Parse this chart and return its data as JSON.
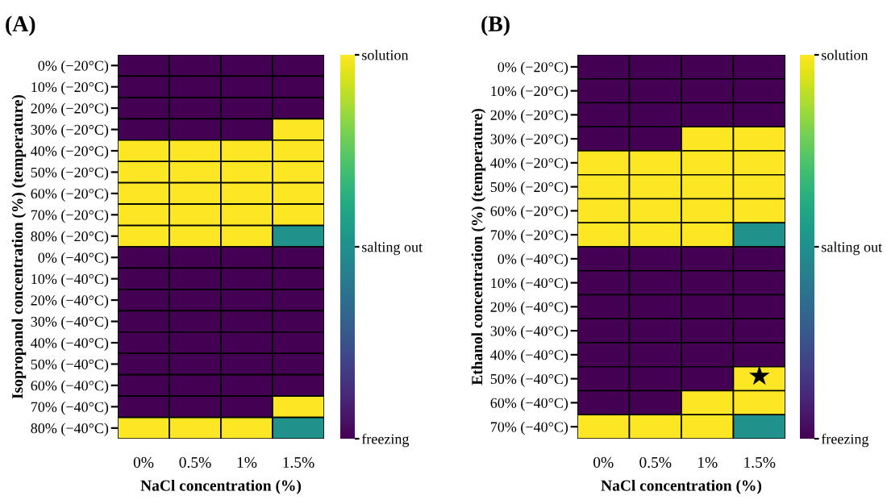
{
  "chart_data": [
    {
      "type": "heatmap",
      "title": "(A)",
      "xlabel": "NaCl concentration (%)",
      "ylabel": "Isopropanol concentration (%) (temperature)",
      "categories": [
        "0%",
        "0.5%",
        "1%",
        "1.5%"
      ],
      "y_categories": [
        "0% (−20°C)",
        "10% (−20°C)",
        "20% (−20°C)",
        "30% (−20°C)",
        "40% (−20°C)",
        "50% (−20°C)",
        "60% (−20°C)",
        "70% (−20°C)",
        "80% (−20°C)",
        "0% (−40°C)",
        "10% (−40°C)",
        "20% (−40°C)",
        "30% (−40°C)",
        "40% (−40°C)",
        "50% (−40°C)",
        "60% (−40°C)",
        "70% (−40°C)",
        "80% (−40°C)"
      ],
      "cells": [
        [
          0,
          0,
          0,
          0
        ],
        [
          0,
          0,
          0,
          0
        ],
        [
          0,
          0,
          0,
          0
        ],
        [
          0,
          0,
          0,
          2
        ],
        [
          2,
          2,
          2,
          2
        ],
        [
          2,
          2,
          2,
          2
        ],
        [
          2,
          2,
          2,
          2
        ],
        [
          2,
          2,
          2,
          2
        ],
        [
          2,
          2,
          2,
          1
        ],
        [
          0,
          0,
          0,
          0
        ],
        [
          0,
          0,
          0,
          0
        ],
        [
          0,
          0,
          0,
          0
        ],
        [
          0,
          0,
          0,
          0
        ],
        [
          0,
          0,
          0,
          0
        ],
        [
          0,
          0,
          0,
          0
        ],
        [
          0,
          0,
          0,
          0
        ],
        [
          0,
          0,
          0,
          2
        ],
        [
          2,
          2,
          2,
          1
        ]
      ],
      "clim": [
        0,
        2
      ],
      "cticks": [
        {
          "value": 0,
          "label": "freezing"
        },
        {
          "value": 1,
          "label": "salting out"
        },
        {
          "value": 2,
          "label": "solution"
        }
      ]
    },
    {
      "type": "heatmap",
      "title": "(B)",
      "xlabel": "NaCl concentration (%)",
      "ylabel": "Ethanol concentration (%) (temperature)",
      "categories": [
        "0%",
        "0.5%",
        "1%",
        "1.5%"
      ],
      "y_categories": [
        "0% (−20°C)",
        "10% (−20°C)",
        "20% (−20°C)",
        "30% (−20°C)",
        "40% (−20°C)",
        "50% (−20°C)",
        "60% (−20°C)",
        "70% (−20°C)",
        "0% (−40°C)",
        "10% (−40°C)",
        "20% (−40°C)",
        "30% (−40°C)",
        "40% (−40°C)",
        "50% (−40°C)",
        "60% (−40°C)",
        "70% (−40°C)"
      ],
      "cells": [
        [
          0,
          0,
          0,
          0
        ],
        [
          0,
          0,
          0,
          0
        ],
        [
          0,
          0,
          0,
          0
        ],
        [
          0,
          0,
          2,
          2
        ],
        [
          2,
          2,
          2,
          2
        ],
        [
          2,
          2,
          2,
          2
        ],
        [
          2,
          2,
          2,
          2
        ],
        [
          2,
          2,
          2,
          1
        ],
        [
          0,
          0,
          0,
          0
        ],
        [
          0,
          0,
          0,
          0
        ],
        [
          0,
          0,
          0,
          0
        ],
        [
          0,
          0,
          0,
          0
        ],
        [
          0,
          0,
          0,
          0
        ],
        [
          0,
          0,
          0,
          2
        ],
        [
          0,
          0,
          2,
          2
        ],
        [
          2,
          2,
          2,
          1
        ]
      ],
      "clim": [
        0,
        2
      ],
      "cticks": [
        {
          "value": 0,
          "label": "freezing"
        },
        {
          "value": 1,
          "label": "salting out"
        },
        {
          "value": 2,
          "label": "solution"
        }
      ],
      "annotations": [
        "★"
      ]
    }
  ]
}
